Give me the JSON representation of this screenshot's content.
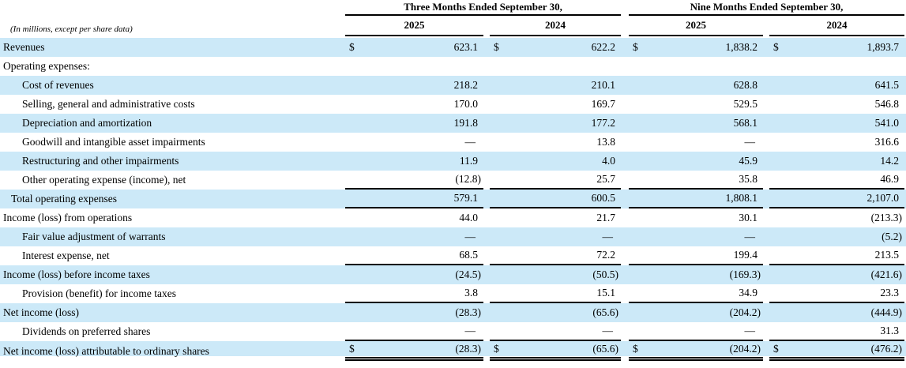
{
  "colors": {
    "highlight": "#cce9f8",
    "line": "#000000",
    "text": "#000000"
  },
  "table": {
    "note": "(In millions, except per share data)",
    "currency_symbol": "$",
    "groups": [
      {
        "label": "Three Months Ended September 30,",
        "years": [
          "2025",
          "2024"
        ]
      },
      {
        "label": "Nine Months Ended September 30,",
        "years": [
          "2025",
          "2024"
        ]
      }
    ],
    "rows": [
      {
        "label": "Revenues",
        "indent": 0,
        "highlight": true,
        "dollar": true,
        "border": "none",
        "values": [
          "623.1",
          "622.2",
          "1,838.2",
          "1,893.7"
        ]
      },
      {
        "label": "Operating expenses:",
        "indent": 0,
        "highlight": false,
        "dollar": false,
        "border": "none",
        "values": [
          "",
          "",
          "",
          ""
        ]
      },
      {
        "label": "Cost of revenues",
        "indent": 2,
        "highlight": true,
        "dollar": false,
        "border": "none",
        "values": [
          "218.2",
          "210.1",
          "628.8",
          "641.5"
        ]
      },
      {
        "label": "Selling, general and administrative costs",
        "indent": 2,
        "highlight": false,
        "dollar": false,
        "border": "none",
        "values": [
          "170.0",
          "169.7",
          "529.5",
          "546.8"
        ]
      },
      {
        "label": "Depreciation and amortization",
        "indent": 2,
        "highlight": true,
        "dollar": false,
        "border": "none",
        "values": [
          "191.8",
          "177.2",
          "568.1",
          "541.0"
        ]
      },
      {
        "label": "Goodwill and intangible asset impairments",
        "indent": 2,
        "highlight": false,
        "dollar": false,
        "border": "none",
        "values": [
          "—",
          "13.8",
          "—",
          "316.6"
        ]
      },
      {
        "label": "Restructuring and other impairments",
        "indent": 2,
        "highlight": true,
        "dollar": false,
        "border": "none",
        "values": [
          "11.9",
          "4.0",
          "45.9",
          "14.2"
        ]
      },
      {
        "label": "Other operating expense (income), net",
        "indent": 2,
        "highlight": false,
        "dollar": false,
        "border": "single",
        "values": [
          "(12.8)",
          "25.7",
          "35.8",
          "46.9"
        ]
      },
      {
        "label": "Total operating expenses",
        "indent": 1,
        "highlight": true,
        "dollar": false,
        "border": "single",
        "values": [
          "579.1",
          "600.5",
          "1,808.1",
          "2,107.0"
        ]
      },
      {
        "label": "Income (loss) from operations",
        "indent": 0,
        "highlight": false,
        "dollar": false,
        "border": "none",
        "values": [
          "44.0",
          "21.7",
          "30.1",
          "(213.3)"
        ]
      },
      {
        "label": "Fair value adjustment of warrants",
        "indent": 2,
        "highlight": true,
        "dollar": false,
        "border": "none",
        "values": [
          "—",
          "—",
          "—",
          "(5.2)"
        ]
      },
      {
        "label": "Interest expense, net",
        "indent": 2,
        "highlight": false,
        "dollar": false,
        "border": "single",
        "values": [
          "68.5",
          "72.2",
          "199.4",
          "213.5"
        ]
      },
      {
        "label": "Income (loss) before income taxes",
        "indent": 0,
        "highlight": true,
        "dollar": false,
        "border": "none",
        "values": [
          "(24.5)",
          "(50.5)",
          "(169.3)",
          "(421.6)"
        ]
      },
      {
        "label": "Provision (benefit) for income taxes",
        "indent": 2,
        "highlight": false,
        "dollar": false,
        "border": "single",
        "values": [
          "3.8",
          "15.1",
          "34.9",
          "23.3"
        ]
      },
      {
        "label": "Net income (loss)",
        "indent": 0,
        "highlight": true,
        "dollar": false,
        "border": "none",
        "values": [
          "(28.3)",
          "(65.6)",
          "(204.2)",
          "(444.9)"
        ]
      },
      {
        "label": "Dividends on preferred shares",
        "indent": 2,
        "highlight": false,
        "dollar": false,
        "border": "single",
        "values": [
          "—",
          "—",
          "—",
          "31.3"
        ]
      },
      {
        "label": "Net income (loss) attributable to ordinary shares",
        "indent": 0,
        "highlight": true,
        "dollar": true,
        "border": "double",
        "values": [
          "(28.3)",
          "(65.6)",
          "(204.2)",
          "(476.2)"
        ]
      }
    ]
  }
}
